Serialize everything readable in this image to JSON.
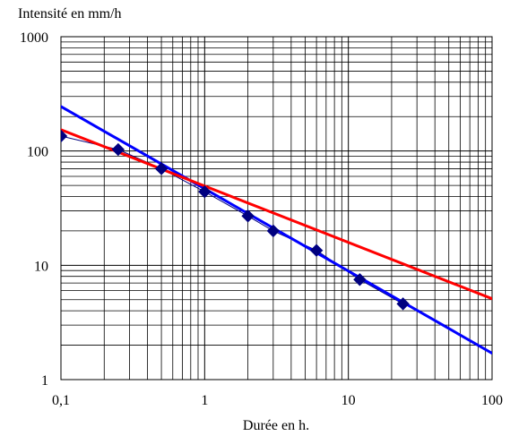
{
  "chart_data": {
    "type": "scatter",
    "log_x": true,
    "log_y": true,
    "xlabel": "Durée en h.",
    "ylabel": "Intensité en mm/h",
    "xlim": [
      0.1,
      100
    ],
    "ylim": [
      1,
      1000
    ],
    "grid": true,
    "x_ticks": [
      "0,1",
      "1",
      "10",
      "100"
    ],
    "y_ticks": [
      "1",
      "10",
      "100",
      "1000"
    ],
    "series": [
      {
        "type": "scatter",
        "color": "#00007f",
        "marker": "diamond",
        "x": [
          0.1,
          0.25,
          0.5,
          1,
          2,
          3,
          6,
          12,
          24
        ],
        "y": [
          135,
          103,
          70,
          44,
          27,
          20,
          13.5,
          7.5,
          4.6
        ]
      },
      {
        "type": "line",
        "color": "#0000ff",
        "x": [
          0.1,
          100
        ],
        "y": [
          245,
          1.7
        ]
      },
      {
        "type": "line",
        "color": "#ff0000",
        "x": [
          0.075,
          100
        ],
        "y": [
          177,
          5.1
        ]
      }
    ]
  }
}
